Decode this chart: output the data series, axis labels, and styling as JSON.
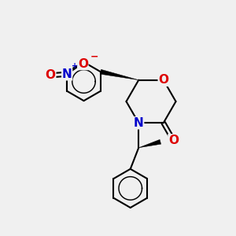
{
  "background_color": "#f0f0f0",
  "bond_color": "#000000",
  "bond_width": 1.5,
  "atom_colors": {
    "O": "#dd0000",
    "N_ring": "#0000cc",
    "N_nitro": "#0000cc"
  },
  "font_size_atom": 11,
  "figsize": [
    3.0,
    3.0
  ],
  "dpi": 100
}
